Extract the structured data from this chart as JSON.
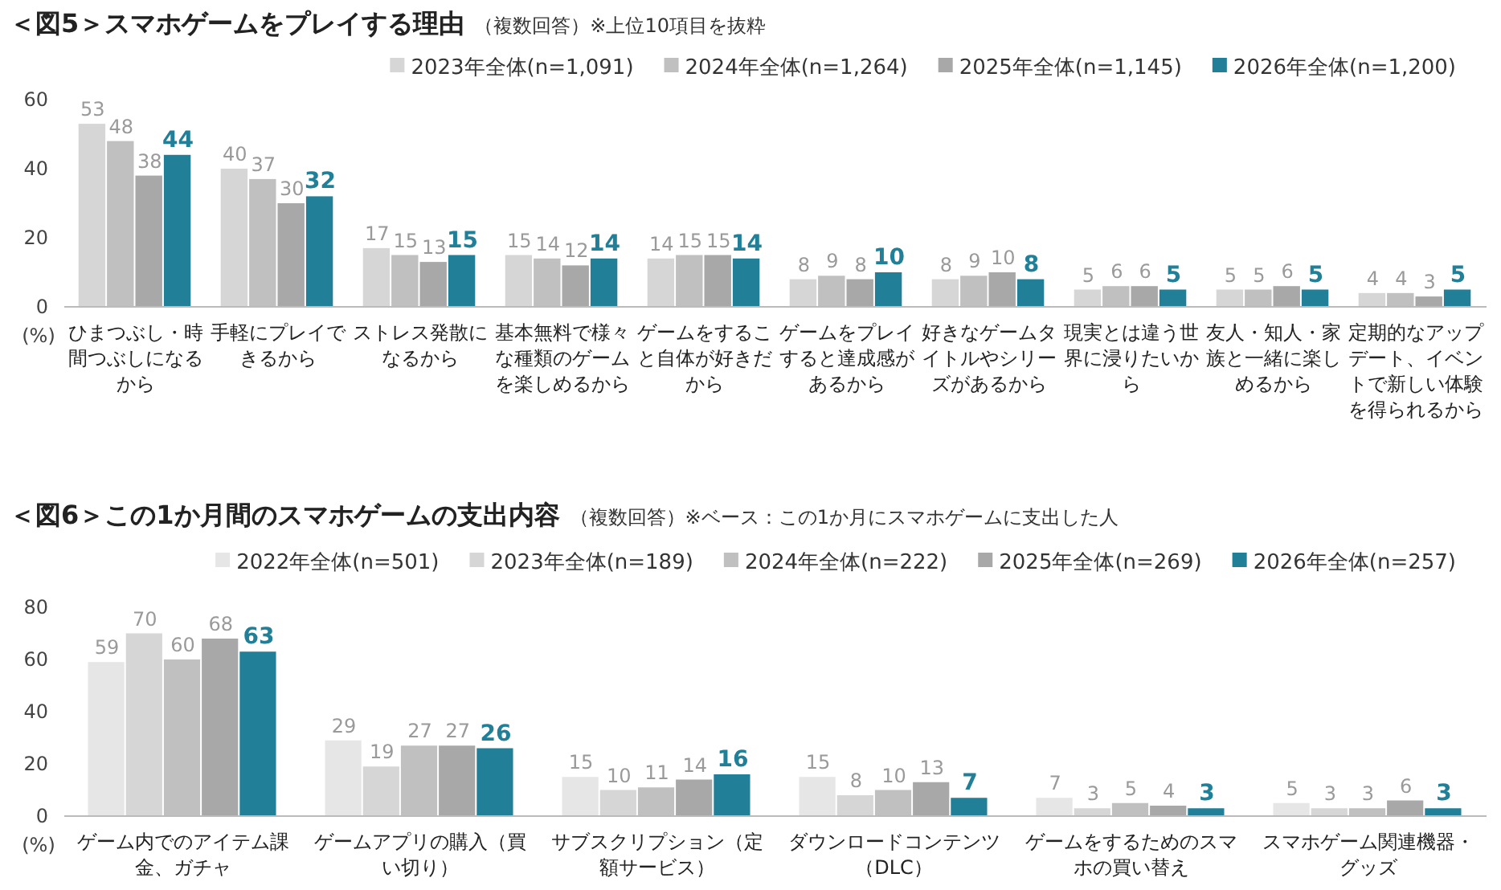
{
  "chart_data": [
    {
      "type": "bar",
      "title": "＜図5＞スマホゲームをプレイする理由",
      "subtitle": "（複数回答）※上位10項目を抜粋",
      "ylabel": "(%)",
      "categories": [
        "ひまつぶし・時間つぶしになるから",
        "手軽にプレイできるから",
        "ストレス発散になるから",
        "基本無料で様々な種類のゲームを楽しめるから",
        "ゲームをすること自体が好きだから",
        "ゲームをプレイすると達成感があるから",
        "好きなゲームタイトルやシリーズがあるから",
        "現実とは違う世界に浸りたいから",
        "友人・知人・家族と一緒に楽しめるから",
        "定期的なアップデート、イベントで新しい体験を得られるから"
      ],
      "series": [
        {
          "name": "2023年全体(n=1,091)",
          "color": "#d6d6d6",
          "values": [
            53,
            40,
            17,
            15,
            14,
            8,
            8,
            5,
            5,
            4
          ]
        },
        {
          "name": "2024年全体(n=1,264)",
          "color": "#c0c0c0",
          "values": [
            48,
            37,
            15,
            14,
            15,
            9,
            9,
            6,
            5,
            4
          ]
        },
        {
          "name": "2025年全体(n=1,145)",
          "color": "#a8a8a8",
          "values": [
            38,
            30,
            13,
            12,
            15,
            8,
            10,
            6,
            6,
            3
          ]
        },
        {
          "name": "2026年全体(n=1,200)",
          "color": "#217f97",
          "values": [
            44,
            32,
            15,
            14,
            14,
            10,
            8,
            5,
            5,
            5
          ]
        }
      ],
      "ylim": [
        0,
        60
      ],
      "yticks": [
        0,
        20,
        40,
        60
      ],
      "legend": "top",
      "data_labels": true
    },
    {
      "type": "bar",
      "title": "＜図6＞この1か月間のスマホゲームの支出内容",
      "subtitle": "（複数回答）※ベース：この1か月にスマホゲームに支出した人",
      "ylabel": "(%)",
      "categories": [
        "ゲーム内でのアイテム課金、ガチャ",
        "ゲームアプリの購入（買い切り）",
        "サブスクリプション（定額サービス）",
        "ダウンロードコンテンツ（DLC）",
        "ゲームをするためのスマホの買い替え",
        "スマホゲーム関連機器・グッズ"
      ],
      "series": [
        {
          "name": "2022年全体(n=501)",
          "color": "#e6e6e6",
          "values": [
            59,
            29,
            15,
            15,
            7,
            5
          ]
        },
        {
          "name": "2023年全体(n=189)",
          "color": "#d6d6d6",
          "values": [
            70,
            19,
            10,
            8,
            3,
            3
          ]
        },
        {
          "name": "2024年全体(n=222)",
          "color": "#c0c0c0",
          "values": [
            60,
            27,
            11,
            10,
            5,
            3
          ]
        },
        {
          "name": "2025年全体(n=269)",
          "color": "#a8a8a8",
          "values": [
            68,
            27,
            14,
            13,
            4,
            6
          ]
        },
        {
          "name": "2026年全体(n=257)",
          "color": "#217f97",
          "values": [
            63,
            26,
            16,
            7,
            3,
            3
          ]
        }
      ],
      "ylim": [
        0,
        80
      ],
      "yticks": [
        0,
        20,
        40,
        60,
        80
      ],
      "legend": "top",
      "data_labels": true
    }
  ]
}
